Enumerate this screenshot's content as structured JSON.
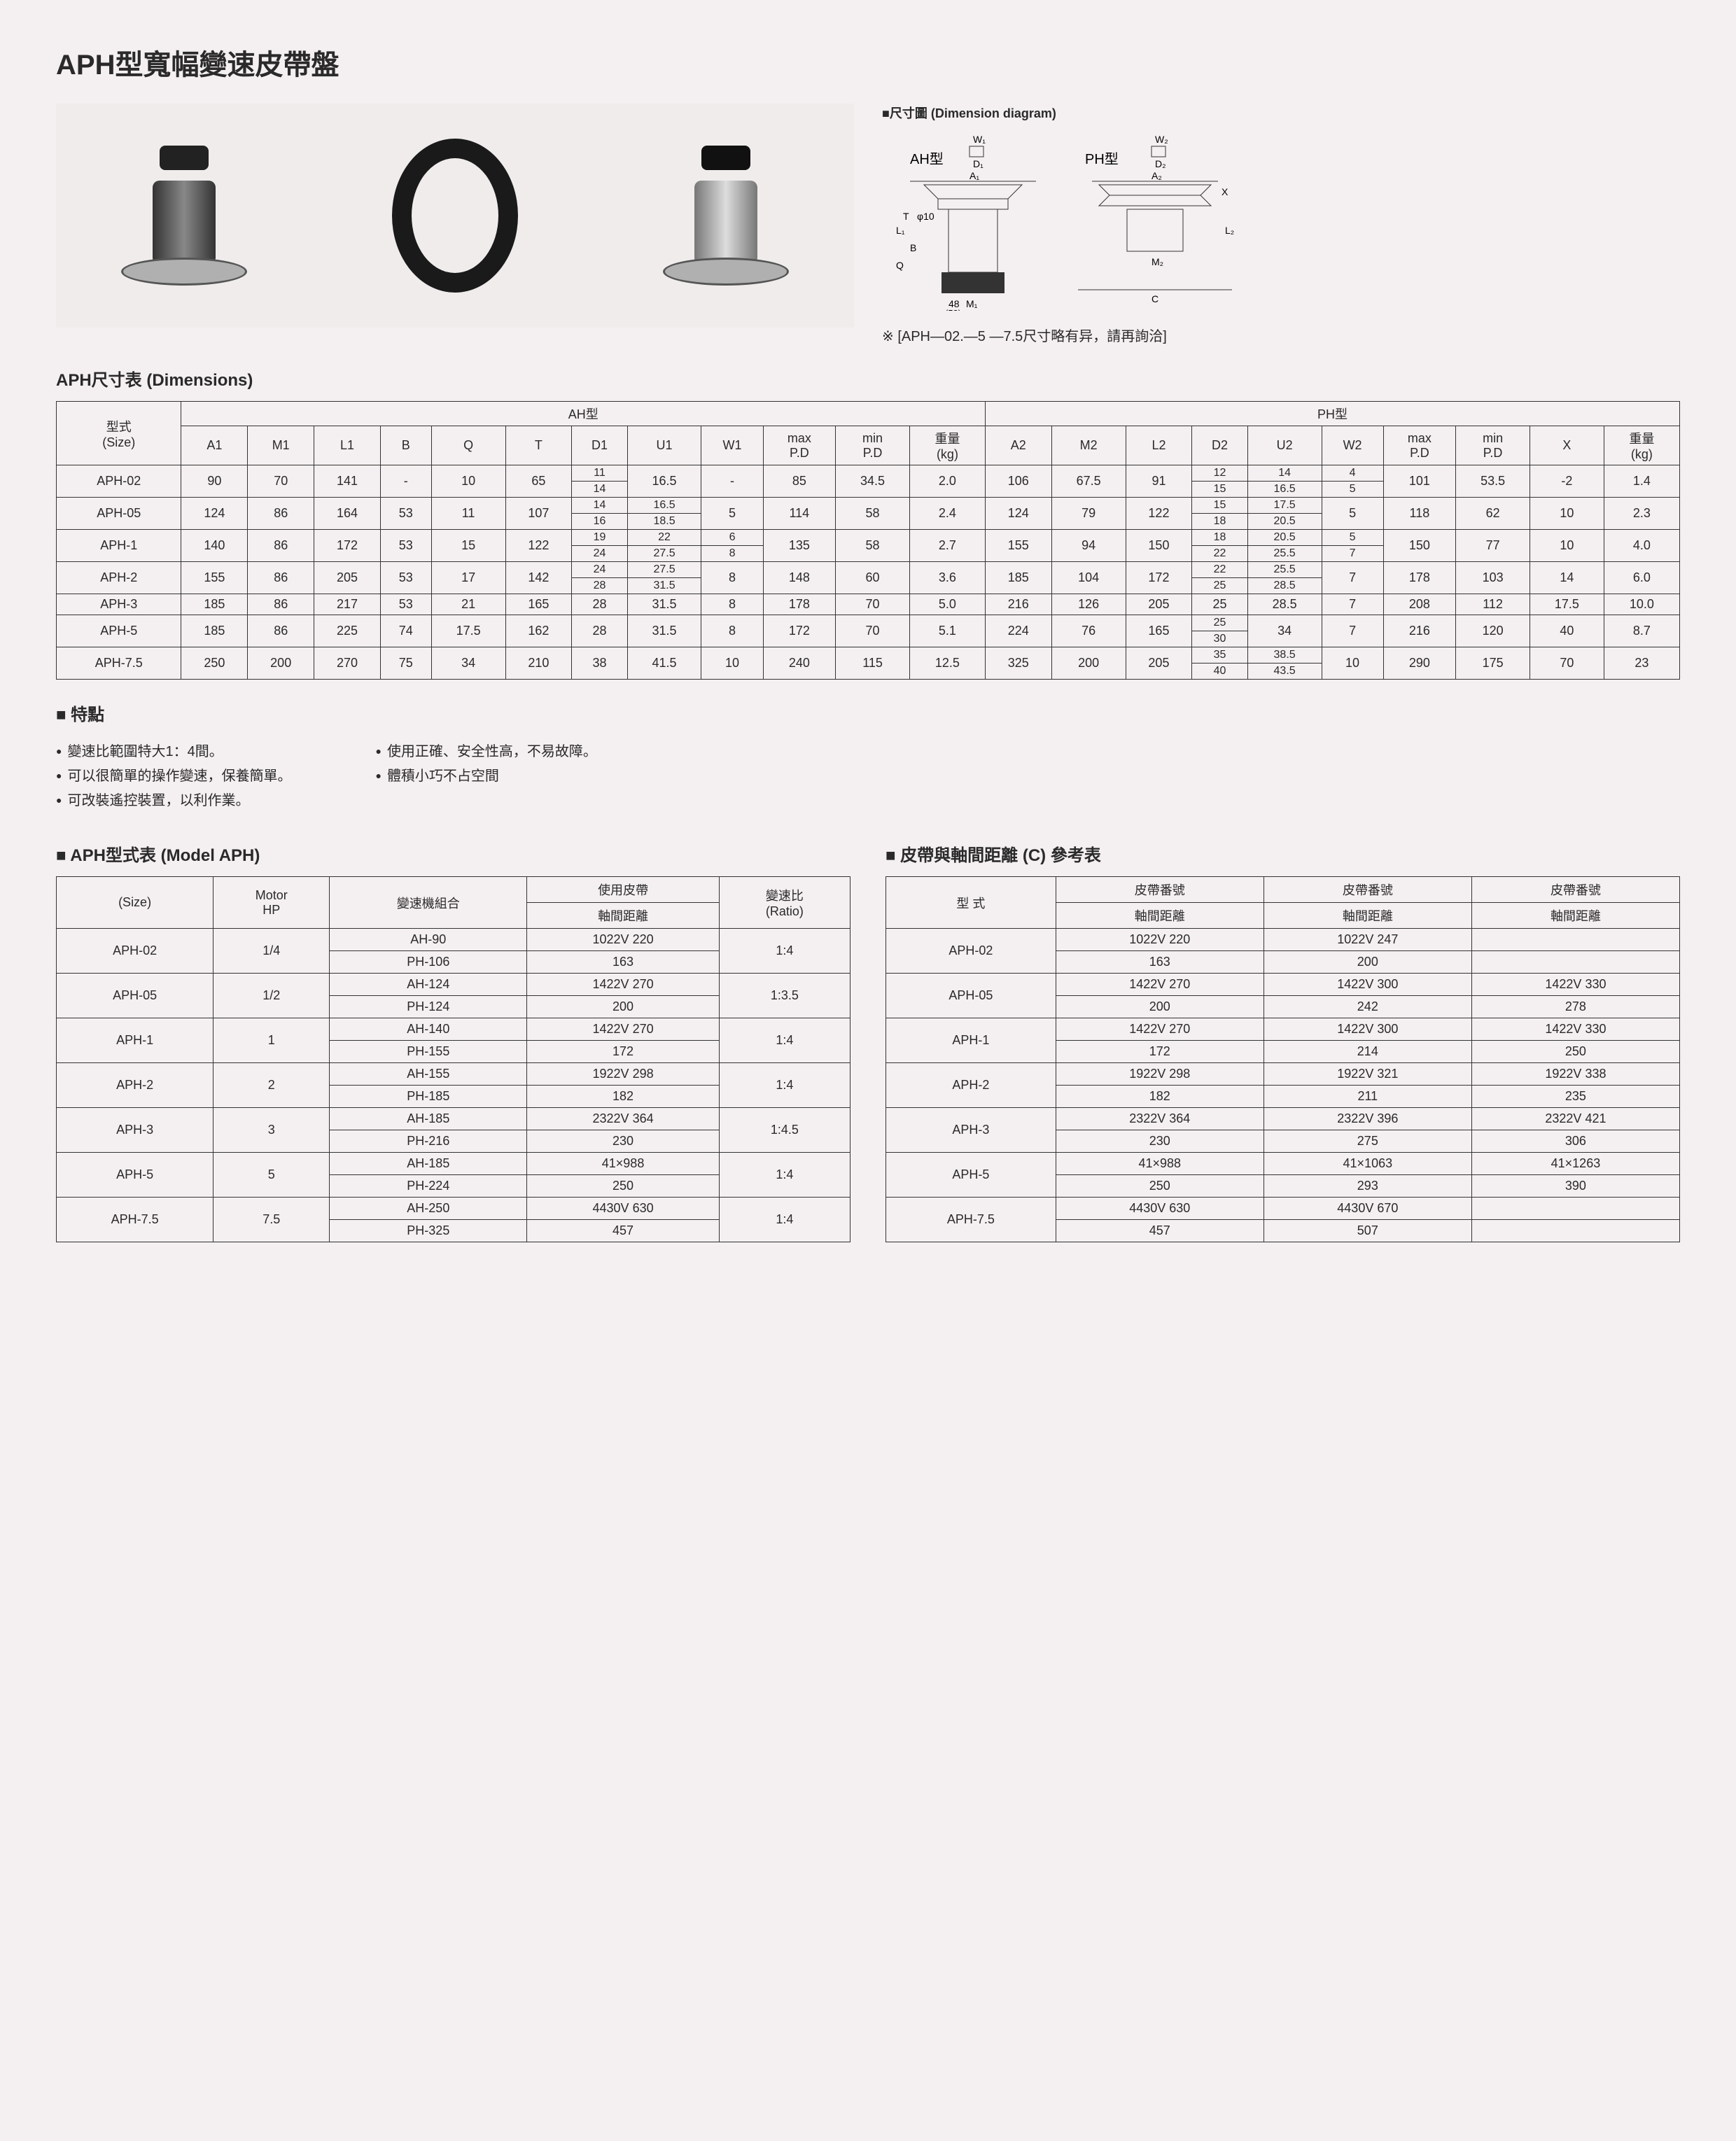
{
  "title": "APH型寬幅變速皮帶盤",
  "diagram_title": "■尺寸圖 (Dimension diagram)",
  "diagram_labels": {
    "ah": "AH型",
    "ph": "PH型"
  },
  "note": "※ [APH—02.—5 —7.5尺寸略有异，請再詢洽]",
  "dim_section": "APH尺寸表 (Dimensions)",
  "dim_headers": {
    "size": "型式\n(Size)",
    "ah_group": "AH型",
    "ph_group": "PH型",
    "ah_cols": [
      "A1",
      "M1",
      "L1",
      "B",
      "Q",
      "T",
      "D1",
      "U1",
      "W1",
      "max\nP.D",
      "min\nP.D",
      "重量\n(kg)"
    ],
    "ph_cols": [
      "A2",
      "M2",
      "L2",
      "D2",
      "U2",
      "W2",
      "max\nP.D",
      "min\nP.D",
      "X",
      "重量\n(kg)"
    ]
  },
  "dim_rows": [
    {
      "size": "APH-02",
      "a1": "90",
      "m1": "70",
      "l1": "141",
      "b": "-",
      "q": "10",
      "t": "65",
      "d1": [
        "11",
        "14"
      ],
      "u1": "16.5",
      "w1": "-",
      "maxpd1": "85",
      "minpd1": "34.5",
      "kg1": "2.0",
      "a2": "106",
      "m2": "67.5",
      "l2": "91",
      "d2": [
        "12",
        "15"
      ],
      "u2": [
        "14",
        "16.5"
      ],
      "w2": [
        "4",
        "5"
      ],
      "maxpd2": "101",
      "minpd2": "53.5",
      "x": "-2",
      "kg2": "1.4"
    },
    {
      "size": "APH-05",
      "a1": "124",
      "m1": "86",
      "l1": "164",
      "b": "53",
      "q": "11",
      "t": "107",
      "d1": [
        "14",
        "16"
      ],
      "u1": [
        "16.5",
        "18.5"
      ],
      "w1": "5",
      "maxpd1": "114",
      "minpd1": "58",
      "kg1": "2.4",
      "a2": "124",
      "m2": "79",
      "l2": "122",
      "d2": [
        "15",
        "18"
      ],
      "u2": [
        "17.5",
        "20.5"
      ],
      "w2": "5",
      "maxpd2": "118",
      "minpd2": "62",
      "x": "10",
      "kg2": "2.3"
    },
    {
      "size": "APH-1",
      "a1": "140",
      "m1": "86",
      "l1": "172",
      "b": "53",
      "q": "15",
      "t": "122",
      "d1": [
        "19",
        "24"
      ],
      "u1": [
        "22",
        "27.5"
      ],
      "w1": [
        "6",
        "8"
      ],
      "maxpd1": "135",
      "minpd1": "58",
      "kg1": "2.7",
      "a2": "155",
      "m2": "94",
      "l2": "150",
      "d2": [
        "18",
        "22"
      ],
      "u2": [
        "20.5",
        "25.5"
      ],
      "w2": [
        "5",
        "7"
      ],
      "maxpd2": "150",
      "minpd2": "77",
      "x": "10",
      "kg2": "4.0"
    },
    {
      "size": "APH-2",
      "a1": "155",
      "m1": "86",
      "l1": "205",
      "b": "53",
      "q": "17",
      "t": "142",
      "d1": [
        "24",
        "28"
      ],
      "u1": [
        "27.5",
        "31.5"
      ],
      "w1": "8",
      "maxpd1": "148",
      "minpd1": "60",
      "kg1": "3.6",
      "a2": "185",
      "m2": "104",
      "l2": "172",
      "d2": [
        "22",
        "25"
      ],
      "u2": [
        "25.5",
        "28.5"
      ],
      "w2": "7",
      "maxpd2": "178",
      "minpd2": "103",
      "x": "14",
      "kg2": "6.0"
    },
    {
      "size": "APH-3",
      "a1": "185",
      "m1": "86",
      "l1": "217",
      "b": "53",
      "q": "21",
      "t": "165",
      "d1": "28",
      "u1": "31.5",
      "w1": "8",
      "maxpd1": "178",
      "minpd1": "70",
      "kg1": "5.0",
      "a2": "216",
      "m2": "126",
      "l2": "205",
      "d2": "25",
      "u2": "28.5",
      "w2": "7",
      "maxpd2": "208",
      "minpd2": "112",
      "x": "17.5",
      "kg2": "10.0"
    },
    {
      "size": "APH-5",
      "a1": "185",
      "m1": "86",
      "l1": "225",
      "b": "74",
      "q": "17.5",
      "t": "162",
      "d1": "28",
      "u1": "31.5",
      "w1": "8",
      "maxpd1": "172",
      "minpd1": "70",
      "kg1": "5.1",
      "a2": "224",
      "m2": "76",
      "l2": "165",
      "d2": [
        "25",
        "30"
      ],
      "u2": "34",
      "w2": "7",
      "maxpd2": "216",
      "minpd2": "120",
      "x": "40",
      "kg2": "8.7"
    },
    {
      "size": "APH-7.5",
      "a1": "250",
      "m1": "200",
      "l1": "270",
      "b": "75",
      "q": "34",
      "t": "210",
      "d1": "38",
      "u1": "41.5",
      "w1": "10",
      "maxpd1": "240",
      "minpd1": "115",
      "kg1": "12.5",
      "a2": "325",
      "m2": "200",
      "l2": "205",
      "d2": [
        "35",
        "40"
      ],
      "u2": [
        "38.5",
        "43.5"
      ],
      "w2": "10",
      "maxpd2": "290",
      "minpd2": "175",
      "x": "70",
      "kg2": "23"
    }
  ],
  "features_title": "■ 特點",
  "features_left": [
    "變速比範圍特大1：4間。",
    "可以很簡單的操作變速，保養簡單。",
    "可改裝遙控裝置，以利作業。"
  ],
  "features_right": [
    "使用正確、安全性高，不易故障。",
    "體積小巧不占空間"
  ],
  "model_title": "■ APH型式表 (Model APH)",
  "model_headers": [
    "(Size)",
    "Motor\nHP",
    "變速機組合",
    "使用皮帶\n軸間距離",
    "變速比\n(Ratio)"
  ],
  "model_sub": {
    "belt": "使用皮帶",
    "dist": "軸間距離"
  },
  "model_rows": [
    {
      "size": "APH-02",
      "hp": "1/4",
      "combo": [
        "AH-90",
        "PH-106"
      ],
      "belt": "1022V 220",
      "dist": "163",
      "ratio": "1:4"
    },
    {
      "size": "APH-05",
      "hp": "1/2",
      "combo": [
        "AH-124",
        "PH-124"
      ],
      "belt": "1422V 270",
      "dist": "200",
      "ratio": "1:3.5"
    },
    {
      "size": "APH-1",
      "hp": "1",
      "combo": [
        "AH-140",
        "PH-155"
      ],
      "belt": "1422V 270",
      "dist": "172",
      "ratio": "1:4"
    },
    {
      "size": "APH-2",
      "hp": "2",
      "combo": [
        "AH-155",
        "PH-185"
      ],
      "belt": "1922V 298",
      "dist": "182",
      "ratio": "1:4"
    },
    {
      "size": "APH-3",
      "hp": "3",
      "combo": [
        "AH-185",
        "PH-216"
      ],
      "belt": "2322V 364",
      "dist": "230",
      "ratio": "1:4.5"
    },
    {
      "size": "APH-5",
      "hp": "5",
      "combo": [
        "AH-185",
        "PH-224"
      ],
      "belt": "41×988",
      "dist": "250",
      "ratio": "1:4"
    },
    {
      "size": "APH-7.5",
      "hp": "7.5",
      "combo": [
        "AH-250",
        "PH-325"
      ],
      "belt": "4430V 630",
      "dist": "457",
      "ratio": "1:4"
    }
  ],
  "belt_title": "■ 皮帶與軸間距離 (C) 參考表",
  "belt_headers": {
    "type": "型 式",
    "beltno": "皮帶番號",
    "dist": "軸間距離"
  },
  "belt_rows": [
    {
      "size": "APH-02",
      "c1": [
        "1022V 220",
        "163"
      ],
      "c2": [
        "1022V 247",
        "200"
      ],
      "c3": [
        "",
        ""
      ]
    },
    {
      "size": "APH-05",
      "c1": [
        "1422V 270",
        "200"
      ],
      "c2": [
        "1422V 300",
        "242"
      ],
      "c3": [
        "1422V 330",
        "278"
      ]
    },
    {
      "size": "APH-1",
      "c1": [
        "1422V 270",
        "172"
      ],
      "c2": [
        "1422V 300",
        "214"
      ],
      "c3": [
        "1422V 330",
        "250"
      ]
    },
    {
      "size": "APH-2",
      "c1": [
        "1922V 298",
        "182"
      ],
      "c2": [
        "1922V 321",
        "211"
      ],
      "c3": [
        "1922V 338",
        "235"
      ]
    },
    {
      "size": "APH-3",
      "c1": [
        "2322V 364",
        "230"
      ],
      "c2": [
        "2322V 396",
        "275"
      ],
      "c3": [
        "2322V 421",
        "306"
      ]
    },
    {
      "size": "APH-5",
      "c1": [
        "41×988",
        "250"
      ],
      "c2": [
        "41×1063",
        "293"
      ],
      "c3": [
        "41×1263",
        "390"
      ]
    },
    {
      "size": "APH-7.5",
      "c1": [
        "4430V 630",
        "457"
      ],
      "c2": [
        "4430V 670",
        "507"
      ],
      "c3": [
        "",
        ""
      ]
    }
  ],
  "colors": {
    "bg": "#f4eff0",
    "text": "#2a2a2a",
    "border": "#333333"
  }
}
